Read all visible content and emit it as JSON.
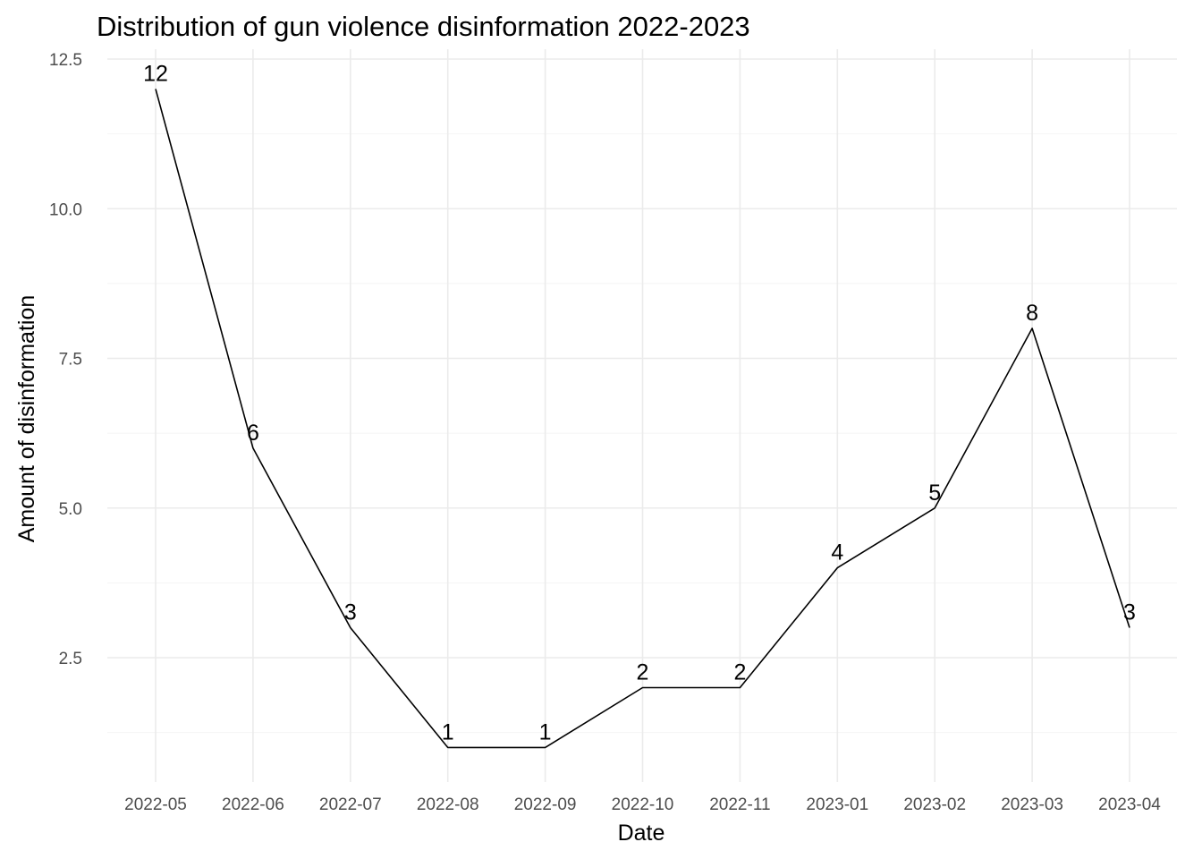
{
  "chart_data": {
    "type": "line",
    "title": "Distribution of gun violence disinformation 2022-2023",
    "xlabel": "Date",
    "ylabel": "Amount of disinformation",
    "categories": [
      "2022-05",
      "2022-06",
      "2022-07",
      "2022-08",
      "2022-09",
      "2022-10",
      "2022-11",
      "2023-01",
      "2023-02",
      "2023-03",
      "2023-04"
    ],
    "values": [
      12,
      6,
      3,
      1,
      1,
      2,
      2,
      4,
      5,
      8,
      3
    ],
    "data_labels": [
      "12",
      "6",
      "3",
      "1",
      "1",
      "2",
      "2",
      "4",
      "5",
      "8",
      "3"
    ],
    "y_ticks": [
      2.5,
      5.0,
      7.5,
      10.0,
      12.5
    ],
    "y_tick_labels": [
      "2.5",
      "5.0",
      "7.5",
      "10.0",
      "12.5"
    ],
    "ylim": [
      0.55,
      12.6
    ],
    "grid": true,
    "legend": "none",
    "colors": {
      "line": "#000000",
      "grid": "#ebebeb",
      "tick_text": "#4d4d4d"
    }
  }
}
